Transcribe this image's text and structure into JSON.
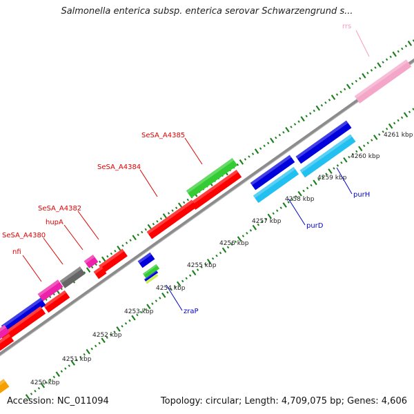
{
  "header": {
    "title": "Salmonella enterica subsp. enterica serovar Schwarzengrund s..."
  },
  "footer": {
    "accession": "Accession: NC_011094",
    "summary": "Topology: circular; Length: 4,709,075 bp; Genes: 4,606"
  },
  "colors": {
    "backbone": "#8c8c8c",
    "tick": "#1e7f1e",
    "cds_red": "#ff0000",
    "cds_blue": "#0000dd",
    "cds_lightblue": "#22c0f0",
    "cds_green": "#33cc33",
    "cds_gray": "#666666",
    "cds_magenta": "#ee22aa",
    "rrna_pink": "#f4a6c8",
    "cds_orange": "#f5a000",
    "cds_yellowgreen": "#c8f050",
    "label_red": "#dd0000",
    "label_blue": "#0000cc",
    "label_pink": "#f49ac0"
  },
  "ruler": {
    "unit": "kbp",
    "labels": [
      "4250 kbp",
      "4251 kbp",
      "4252 kbp",
      "4253 kbp",
      "4254 kbp",
      "4255 kbp",
      "4256 kbp",
      "4257 kbp",
      "4258 kbp",
      "4259 kbp",
      "4260 kbp",
      "4261 kbp"
    ]
  },
  "gene_labels": [
    {
      "text": "rrs",
      "color": "label_pink"
    },
    {
      "text": "SeSA_A4385",
      "color": "label_red"
    },
    {
      "text": "SeSA_A4384",
      "color": "label_red"
    },
    {
      "text": "SeSA_A4382",
      "color": "label_red"
    },
    {
      "text": "hupA",
      "color": "label_red"
    },
    {
      "text": "SeSA_A4380",
      "color": "label_red"
    },
    {
      "text": "nfi",
      "color": "label_red"
    },
    {
      "text": "purH",
      "color": "label_blue"
    },
    {
      "text": "purD",
      "color": "label_blue"
    },
    {
      "text": "zraP",
      "color": "label_blue"
    }
  ]
}
